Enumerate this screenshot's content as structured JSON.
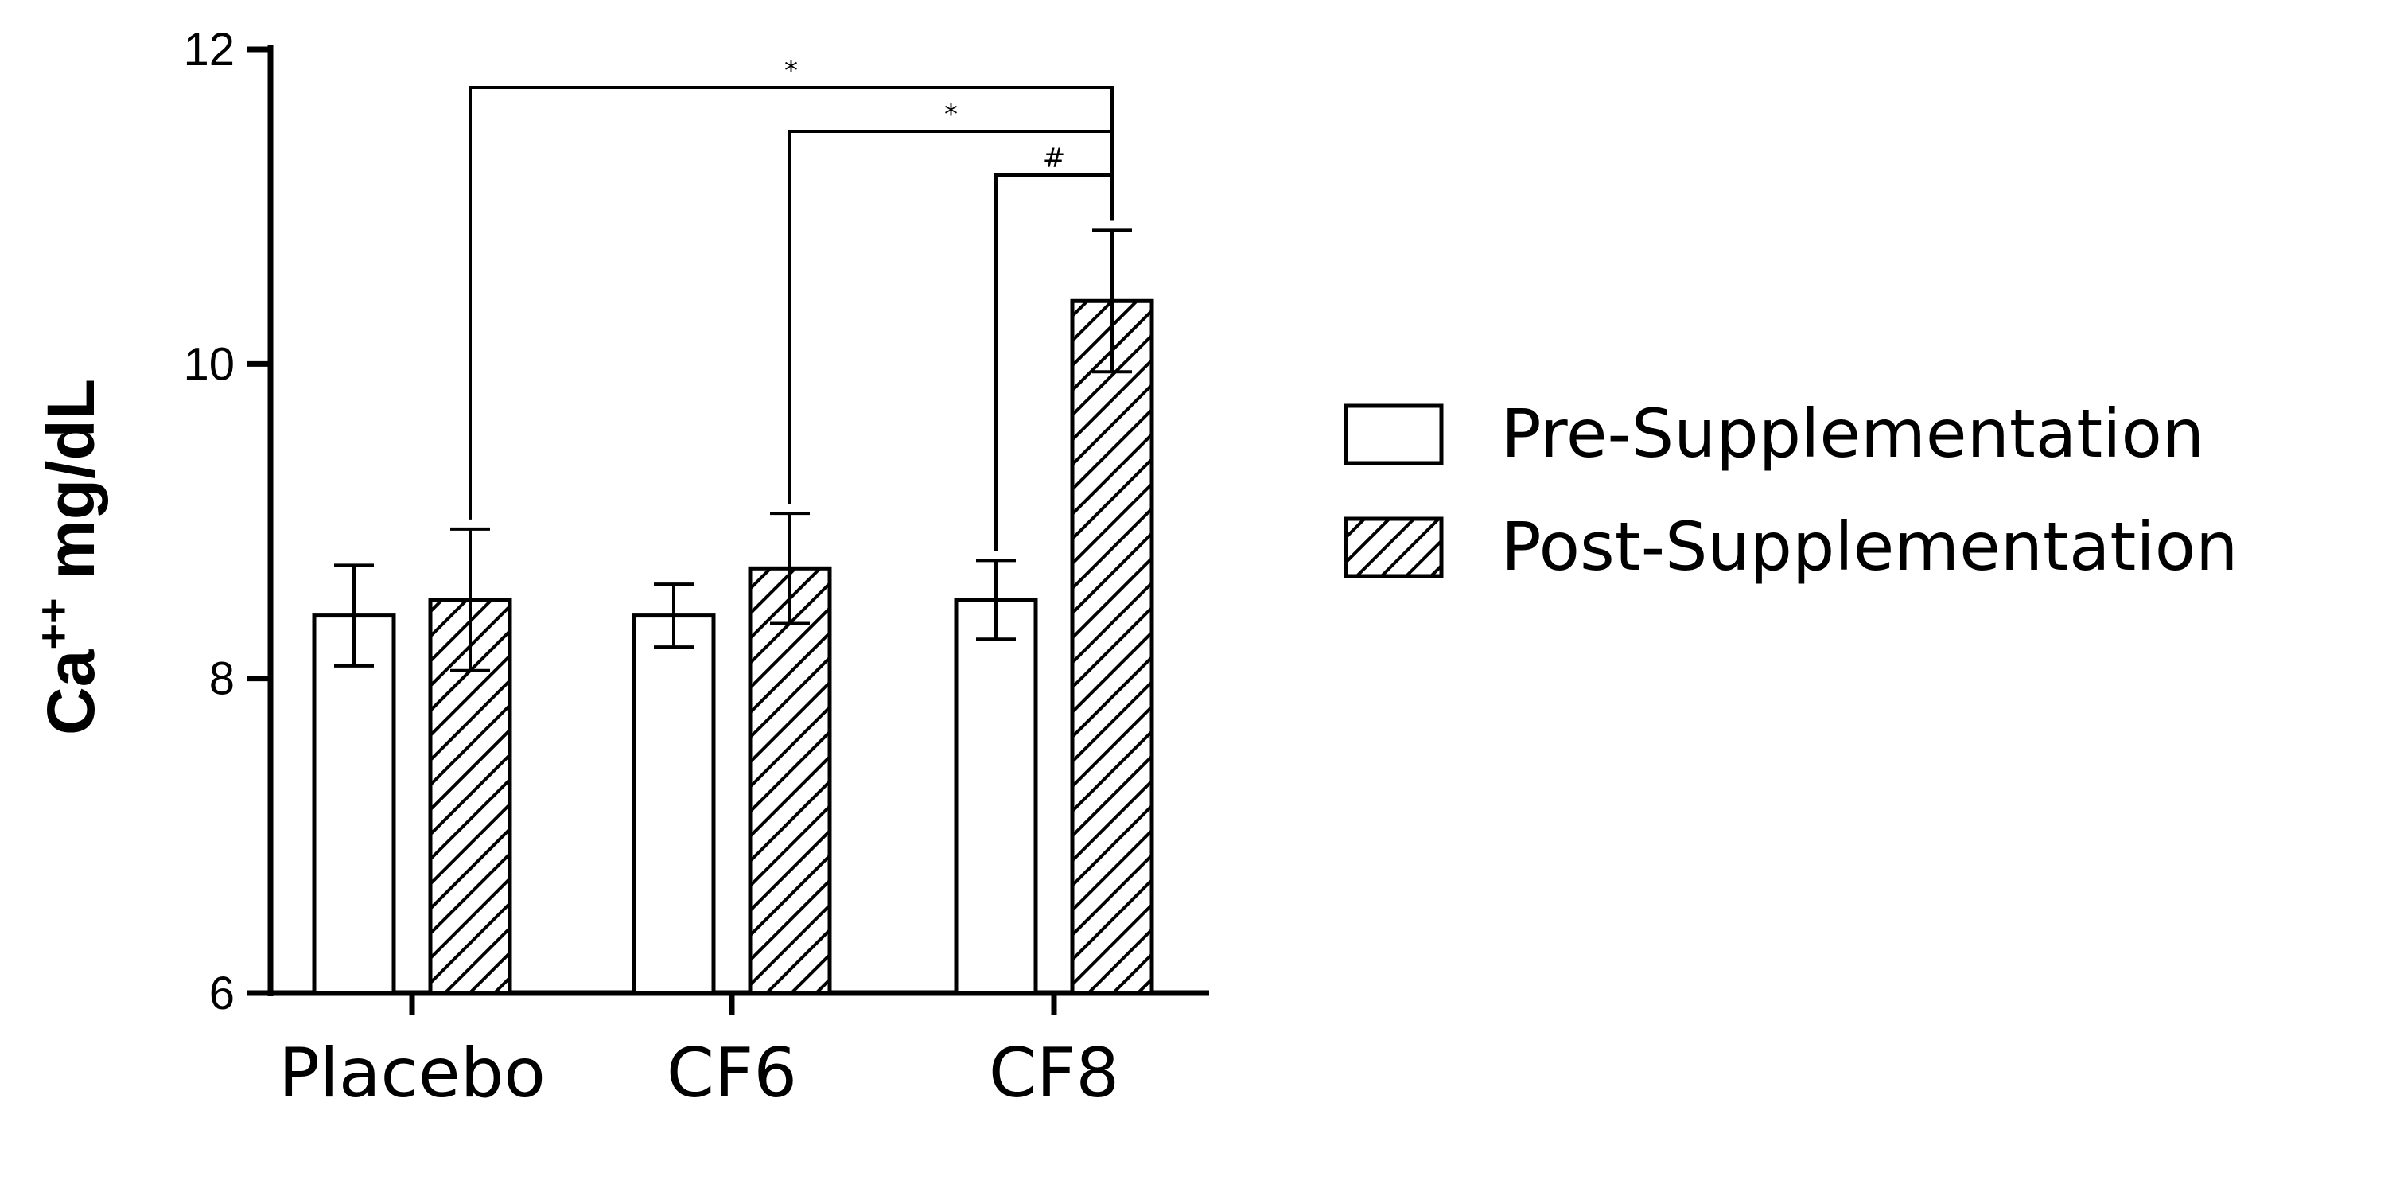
{
  "chart_data": {
    "type": "bar",
    "categories": [
      "Placebo",
      "CF6",
      "CF8"
    ],
    "series": [
      {
        "name": "Pre-Supplementation",
        "pattern": "open",
        "values": [
          8.4,
          8.4,
          8.5
        ],
        "errors": [
          0.32,
          0.2,
          0.25
        ]
      },
      {
        "name": "Post-Supplementation",
        "pattern": "hatched",
        "values": [
          8.5,
          8.7,
          10.4
        ],
        "errors": [
          0.45,
          0.35,
          0.45
        ]
      }
    ],
    "ylabel": {
      "base": "Ca",
      "superscript": "++",
      "unit": " mg/dL"
    },
    "ylim": [
      6,
      12
    ],
    "yticks": [
      6,
      8,
      10,
      12
    ],
    "grid": false,
    "legend_position": "right",
    "significance": [
      {
        "from_category": "Placebo",
        "from_series": "Post-Supplementation",
        "to_category": "CF8",
        "to_series": "Post-Supplementation",
        "label": "*"
      },
      {
        "from_category": "CF6",
        "from_series": "Post-Supplementation",
        "to_category": "CF8",
        "to_series": "Post-Supplementation",
        "label": "*"
      },
      {
        "from_category": "CF8",
        "from_series": "Pre-Supplementation",
        "to_category": "CF8",
        "to_series": "Post-Supplementation",
        "label": "#"
      }
    ],
    "colors": {
      "bar_fill": "#ffffff",
      "stroke": "#000000",
      "hatch": "#000000"
    }
  }
}
